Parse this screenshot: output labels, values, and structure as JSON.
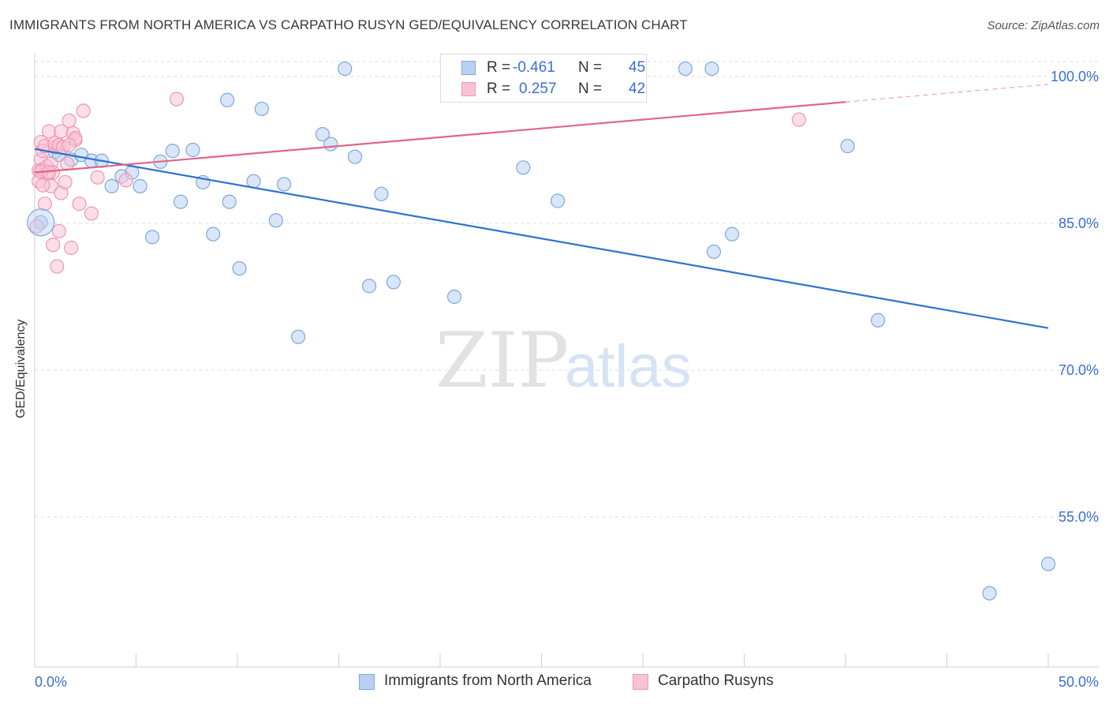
{
  "title": "IMMIGRANTS FROM NORTH AMERICA VS CARPATHO RUSYN GED/EQUIVALENCY CORRELATION CHART",
  "source": "Source: ZipAtlas.com",
  "watermark": {
    "zip": "ZIP",
    "atlas": "atlas"
  },
  "colors": {
    "blue_fill": "#b8d1f3",
    "blue_stroke": "#7ea7de",
    "blue_line": "#2f72d0",
    "pink_fill": "#f7c3d3",
    "pink_stroke": "#ef97b3",
    "pink_line": "#e2648c",
    "tick_label": "#3b6fd1",
    "grid": "#dddddd"
  },
  "legend_top": {
    "rows": [
      {
        "r_label": "R =",
        "r_value": "-0.461",
        "n_label": "N =",
        "n_value": "45"
      },
      {
        "r_label": "R =",
        "r_value": "0.257",
        "n_label": "N =",
        "n_value": "42"
      }
    ]
  },
  "legend_bottom": {
    "items": [
      {
        "label": "Immigrants from North America"
      },
      {
        "label": "Carpatho Rusyns"
      }
    ]
  },
  "chart_data": {
    "type": "scatter",
    "title": "IMMIGRANTS FROM NORTH AMERICA VS CARPATHO RUSYN GED/EQUIVALENCY CORRELATION CHART",
    "xlabel": "",
    "ylabel": "GED/Equivalency",
    "xlim": [
      0,
      50
    ],
    "ylim": [
      40.5,
      101.5
    ],
    "x_tick_labels": [
      "0.0%",
      "50.0%"
    ],
    "y_ticks": [
      55,
      70,
      85,
      100
    ],
    "y_tick_labels": [
      "55.0%",
      "70.0%",
      "85.0%",
      "100.0%"
    ],
    "grid": true,
    "legend_position": "top-center",
    "series": [
      {
        "name": "Immigrants from North America",
        "color": "#b8d1f3",
        "points": [
          [
            0.3,
            85.1
          ],
          [
            1.0,
            92.3
          ],
          [
            1.2,
            92.0
          ],
          [
            1.8,
            91.5
          ],
          [
            2.3,
            92.0
          ],
          [
            2.8,
            91.4
          ],
          [
            3.3,
            91.4
          ],
          [
            3.8,
            88.8
          ],
          [
            4.3,
            89.8
          ],
          [
            4.8,
            90.2
          ],
          [
            5.2,
            88.8
          ],
          [
            5.8,
            83.6
          ],
          [
            6.2,
            91.3
          ],
          [
            6.8,
            92.4
          ],
          [
            7.2,
            87.2
          ],
          [
            7.8,
            92.5
          ],
          [
            8.3,
            89.2
          ],
          [
            8.8,
            83.9
          ],
          [
            9.5,
            97.6
          ],
          [
            9.6,
            87.2
          ],
          [
            10.1,
            80.4
          ],
          [
            10.8,
            89.3
          ],
          [
            11.2,
            96.7
          ],
          [
            11.9,
            85.3
          ],
          [
            12.3,
            89.0
          ],
          [
            13.0,
            73.4
          ],
          [
            14.2,
            94.1
          ],
          [
            14.6,
            93.1
          ],
          [
            15.3,
            100.8
          ],
          [
            15.8,
            91.8
          ],
          [
            16.5,
            78.6
          ],
          [
            17.1,
            88.0
          ],
          [
            17.7,
            79.0
          ],
          [
            20.7,
            77.5
          ],
          [
            24.1,
            90.7
          ],
          [
            25.8,
            87.3
          ],
          [
            26.8,
            100.9
          ],
          [
            32.1,
            100.8
          ],
          [
            33.4,
            100.8
          ],
          [
            33.5,
            82.1
          ],
          [
            34.4,
            83.9
          ],
          [
            40.1,
            92.9
          ],
          [
            41.6,
            75.1
          ],
          [
            47.1,
            47.2
          ],
          [
            50.0,
            50.2
          ]
        ]
      },
      {
        "name": "Carpatho Rusyns",
        "color": "#f7c3d3",
        "points": [
          [
            0.1,
            84.7
          ],
          [
            0.2,
            90.4
          ],
          [
            0.2,
            89.3
          ],
          [
            0.3,
            93.3
          ],
          [
            0.3,
            91.5
          ],
          [
            0.4,
            90.5
          ],
          [
            0.4,
            92.4
          ],
          [
            0.5,
            92.9
          ],
          [
            0.5,
            87.0
          ],
          [
            0.6,
            90.1
          ],
          [
            0.6,
            90.8
          ],
          [
            0.7,
            94.4
          ],
          [
            0.8,
            91.1
          ],
          [
            0.8,
            88.8
          ],
          [
            0.9,
            82.8
          ],
          [
            0.9,
            90.2
          ],
          [
            1.0,
            92.8
          ],
          [
            1.0,
            93.2
          ],
          [
            1.1,
            80.6
          ],
          [
            1.2,
            84.2
          ],
          [
            1.2,
            93.0
          ],
          [
            1.3,
            88.1
          ],
          [
            1.3,
            94.4
          ],
          [
            1.4,
            92.8
          ],
          [
            1.5,
            89.2
          ],
          [
            1.6,
            91.1
          ],
          [
            1.7,
            95.5
          ],
          [
            1.8,
            82.5
          ],
          [
            1.9,
            94.2
          ],
          [
            2.0,
            93.5
          ],
          [
            2.0,
            93.7
          ],
          [
            2.2,
            87.0
          ],
          [
            2.4,
            96.5
          ],
          [
            2.8,
            86.0
          ],
          [
            3.1,
            89.7
          ],
          [
            4.5,
            89.4
          ],
          [
            7.0,
            97.7
          ],
          [
            37.7,
            95.6
          ],
          [
            0.3,
            90.3
          ],
          [
            0.4,
            88.9
          ],
          [
            0.7,
            90.2
          ],
          [
            1.7,
            93.0
          ]
        ]
      }
    ],
    "trend_lines": [
      {
        "series": "Immigrants from North America",
        "x": [
          0,
          50
        ],
        "y": [
          92.6,
          74.3
        ],
        "solid_to": 50
      },
      {
        "series": "Carpatho Rusyns",
        "x": [
          0,
          50
        ],
        "y": [
          90.2,
          99.2
        ],
        "solid_to": 40
      }
    ]
  }
}
